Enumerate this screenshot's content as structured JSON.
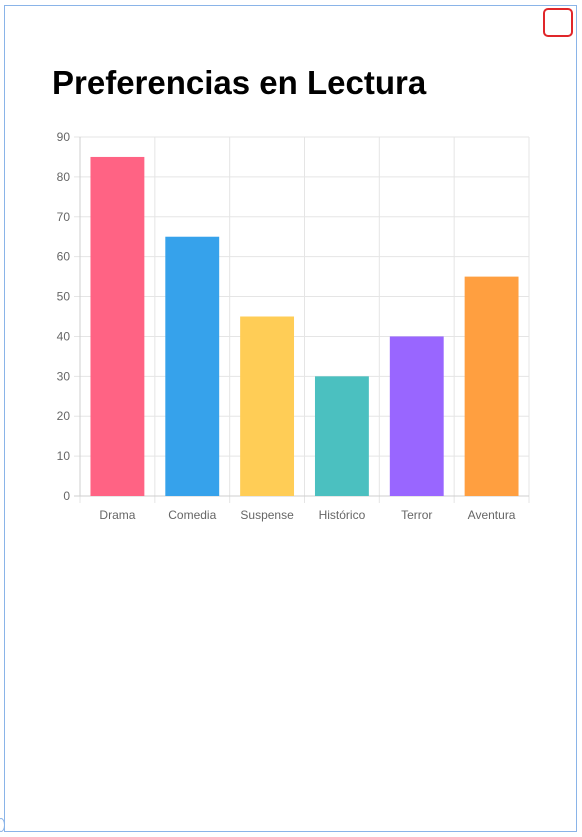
{
  "title": "Preferencias en Lectura",
  "chart_data": {
    "type": "bar",
    "categories": [
      "Drama",
      "Comedia",
      "Suspense",
      "Histórico",
      "Terror",
      "Aventura"
    ],
    "values": [
      85,
      65,
      45,
      30,
      40,
      55
    ],
    "colors": [
      "#ff6384",
      "#36a2eb",
      "#ffcd56",
      "#4bc0c0",
      "#9966ff",
      "#ff9f40"
    ],
    "ylim": [
      0,
      90
    ],
    "yticks": [
      0,
      10,
      20,
      30,
      40,
      50,
      60,
      70,
      80,
      90
    ],
    "grid": true,
    "legend": "none"
  }
}
